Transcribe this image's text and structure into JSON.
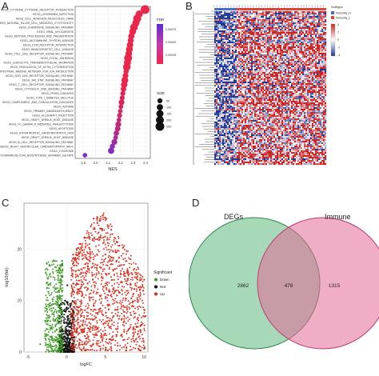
{
  "panels": {
    "a": {
      "letter": "A",
      "chart_data": {
        "type": "scatter",
        "xlabel": "NES",
        "ylabel": "",
        "xlim": [
          1.45,
          2.6
        ],
        "x_ticks": [
          "1.5",
          "2.0",
          "2.1",
          "2.2",
          "2.3",
          "2.4"
        ],
        "categories": [
          "KEGG_CYTOKINE_CYTOKINE_RECEPTOR_INTERACTION",
          "KEGG_LEISHMANIA_INFECTION",
          "KEGG_CELL_ADHESION_MOLECULES_CAMS",
          "KEGG_NATURAL_KILLER_CELL_MEDIATED_CYTOTOXICITY",
          "KEGG_CHEMOKINE_SIGNALING_PATHWAY",
          "KEGG_VIRAL_MYOCARDITIS",
          "KEGG_ANTIGEN_PROCESSING_AND_PRESENTATION",
          "KEGG_AUTOIMMUNE_THYROID_DISEASE",
          "KEGG_ECM_RECEPTOR_INTERACTION",
          "KEGG_HEMATOPOIETIC_CELL_LINEAGE",
          "KEGG_TOLL_LIKE_RECEPTOR_SIGNALING_PATHWAY",
          "KEGG_FOCAL_ADHESION",
          "KEGG_LEUKOCYTE_TRANSENDOTHELIAL_MIGRATION",
          "KEGG_REGULATION_OF_ACTIN_CYTOSKELETON",
          "KEGG_INTESTINAL_IMMUNE_NETWORK_FOR_IGA_PRODUCTION",
          "KEGG_NOD_LIKE_RECEPTOR_SIGNALING_PATHWAY",
          "KEGG_JAK_STAT_SIGNALING_PATHWAY",
          "KEGG_T_CELL_RECEPTOR_SIGNALING_PATHWAY",
          "KEGG_CYTOSOLIC_DNA_SENSING_PATHWAY",
          "KEGG_PRION_DISEASES",
          "KEGG_TYPE_I_DIABETES_MELLITUS",
          "KEGG_COMPLEMENT_AND_COAGULATION_CASCADES",
          "KEGG_ASTHMA",
          "KEGG_PRIMARY_IMMUNODEFICIENCY",
          "KEGG_ALLOGRAFT_REJECTION",
          "KEGG_GRAFT_VERSUS_HOST_DISEASE",
          "KEGG_FC_GAMMA_R_MEDIATED_PHAGOCYTOSIS",
          "KEGG_APOPTOSIS",
          "KEGG_HYPERTROPHIC_CARDIOMYOPATHY_HCM",
          "KEGG_GRAFT_VERSUS_HOST_DISEASE",
          "KEGG_B_CELL_RECEPTOR_SIGNALING_PATHWAY",
          "KEGG_ARRHYTHMOGENIC_RIGHT_VENTRICULAR_CARDIOMYOPATHY_ARVC",
          "KEGG_LYSOSOME",
          "KEGG_GLYCOSAMINOGLYCAN_BIOSYNTHESIS_HEPARAN_SULFATE"
        ],
        "values": [
          2.52,
          2.43,
          2.4,
          2.38,
          2.35,
          2.33,
          2.31,
          2.3,
          2.29,
          2.28,
          2.27,
          2.26,
          2.25,
          2.24,
          2.23,
          2.22,
          2.21,
          2.2,
          2.19,
          2.18,
          2.17,
          2.16,
          2.15,
          2.14,
          2.13,
          2.12,
          2.11,
          2.1,
          2.08,
          2.07,
          2.05,
          2.02,
          2.0,
          1.6
        ],
        "sizes": [
          250,
          150,
          200,
          150,
          180,
          120,
          100,
          90,
          110,
          130,
          120,
          200,
          140,
          170,
          60,
          80,
          130,
          110,
          70,
          50,
          50,
          80,
          40,
          40,
          50,
          40,
          80,
          70,
          70,
          40,
          80,
          60,
          100,
          40
        ],
        "fdr": [
          0.0002,
          0.0002,
          0.0002,
          0.0002,
          0.0002,
          0.0002,
          0.0002,
          0.0002,
          0.0002,
          0.0002,
          0.0002,
          0.0002,
          0.0002,
          0.0002,
          0.0002,
          0.0002,
          0.0002,
          0.0002,
          0.0002,
          0.0003,
          0.0003,
          0.0003,
          0.0004,
          0.0004,
          0.0004,
          0.0005,
          0.0005,
          0.0006,
          0.0006,
          0.0007,
          0.0008,
          0.0009,
          0.001,
          0.0011
        ],
        "legend_fdr": {
          "title": "FDR",
          "ticks": [
            "0.00075",
            "0.00050",
            "0.00025"
          ]
        },
        "legend_size": {
          "title": "SIZE",
          "entries": [
            "50",
            "100",
            "150",
            "200",
            "250"
          ]
        },
        "grid": true
      }
    },
    "b": {
      "letter": "B",
      "chart_data": {
        "type": "heatmap",
        "legend_title": "Subtype",
        "legend_entries": [
          "immunity_H",
          "immunity_L"
        ],
        "scale_ticks": [
          "4",
          "2",
          "0",
          "-2",
          "-4"
        ],
        "colors": {
          "high": "#c62828",
          "mid": "#ffffff",
          "low": "#1f3a93",
          "group_h": "#4a6cc9",
          "group_l": "#e0423a"
        }
      }
    },
    "c": {
      "letter": "C",
      "chart_data": {
        "type": "scatter",
        "xlabel": "logFC",
        "ylabel": "-log10(fdr)",
        "xlim": [
          -5.5,
          10.5
        ],
        "ylim": [
          0,
          29
        ],
        "x_ticks": [
          -5,
          0,
          5,
          10
        ],
        "y_ticks": [
          0,
          10,
          20
        ],
        "legend_title": "Significant",
        "series": [
          {
            "name": "Down",
            "color": "#3a9a22",
            "values": [
              [
                -0.6,
                8
              ],
              [
                -1,
                12
              ],
              [
                -0.8,
                14
              ],
              [
                -1.2,
                6
              ],
              [
                -1.9,
                3
              ],
              [
                -0.7,
                17
              ],
              [
                -1.5,
                4
              ],
              [
                -3.4,
                1.5
              ]
            ]
          },
          {
            "name": "Not",
            "color": "#111111",
            "values": [
              [
                0,
                1
              ],
              [
                0.3,
                2
              ],
              [
                -0.3,
                3
              ],
              [
                0.6,
                5
              ],
              [
                -0.6,
                4
              ],
              [
                0.2,
                7
              ],
              [
                0.5,
                9
              ],
              [
                -0.2,
                10
              ],
              [
                0.1,
                13
              ]
            ]
          },
          {
            "name": "Up",
            "color": "#d12a1a",
            "values": [
              [
                1.5,
                8
              ],
              [
                2.5,
                14
              ],
              [
                3,
                20
              ],
              [
                4,
                22
              ],
              [
                4.5,
                24
              ],
              [
                2,
                11
              ],
              [
                5,
                19
              ],
              [
                6,
                16
              ],
              [
                3.5,
                26
              ],
              [
                8.5,
                9
              ],
              [
                9,
                5
              ],
              [
                10.2,
                7
              ]
            ]
          }
        ]
      }
    },
    "d": {
      "letter": "D",
      "chart_data": {
        "type": "venn",
        "sets": [
          {
            "name": "DEGs",
            "color": "#5fba7d"
          },
          {
            "name": "Immune",
            "color": "#e46a98"
          }
        ],
        "only_left": 2862,
        "both": 478,
        "only_right": 1315
      }
    }
  }
}
